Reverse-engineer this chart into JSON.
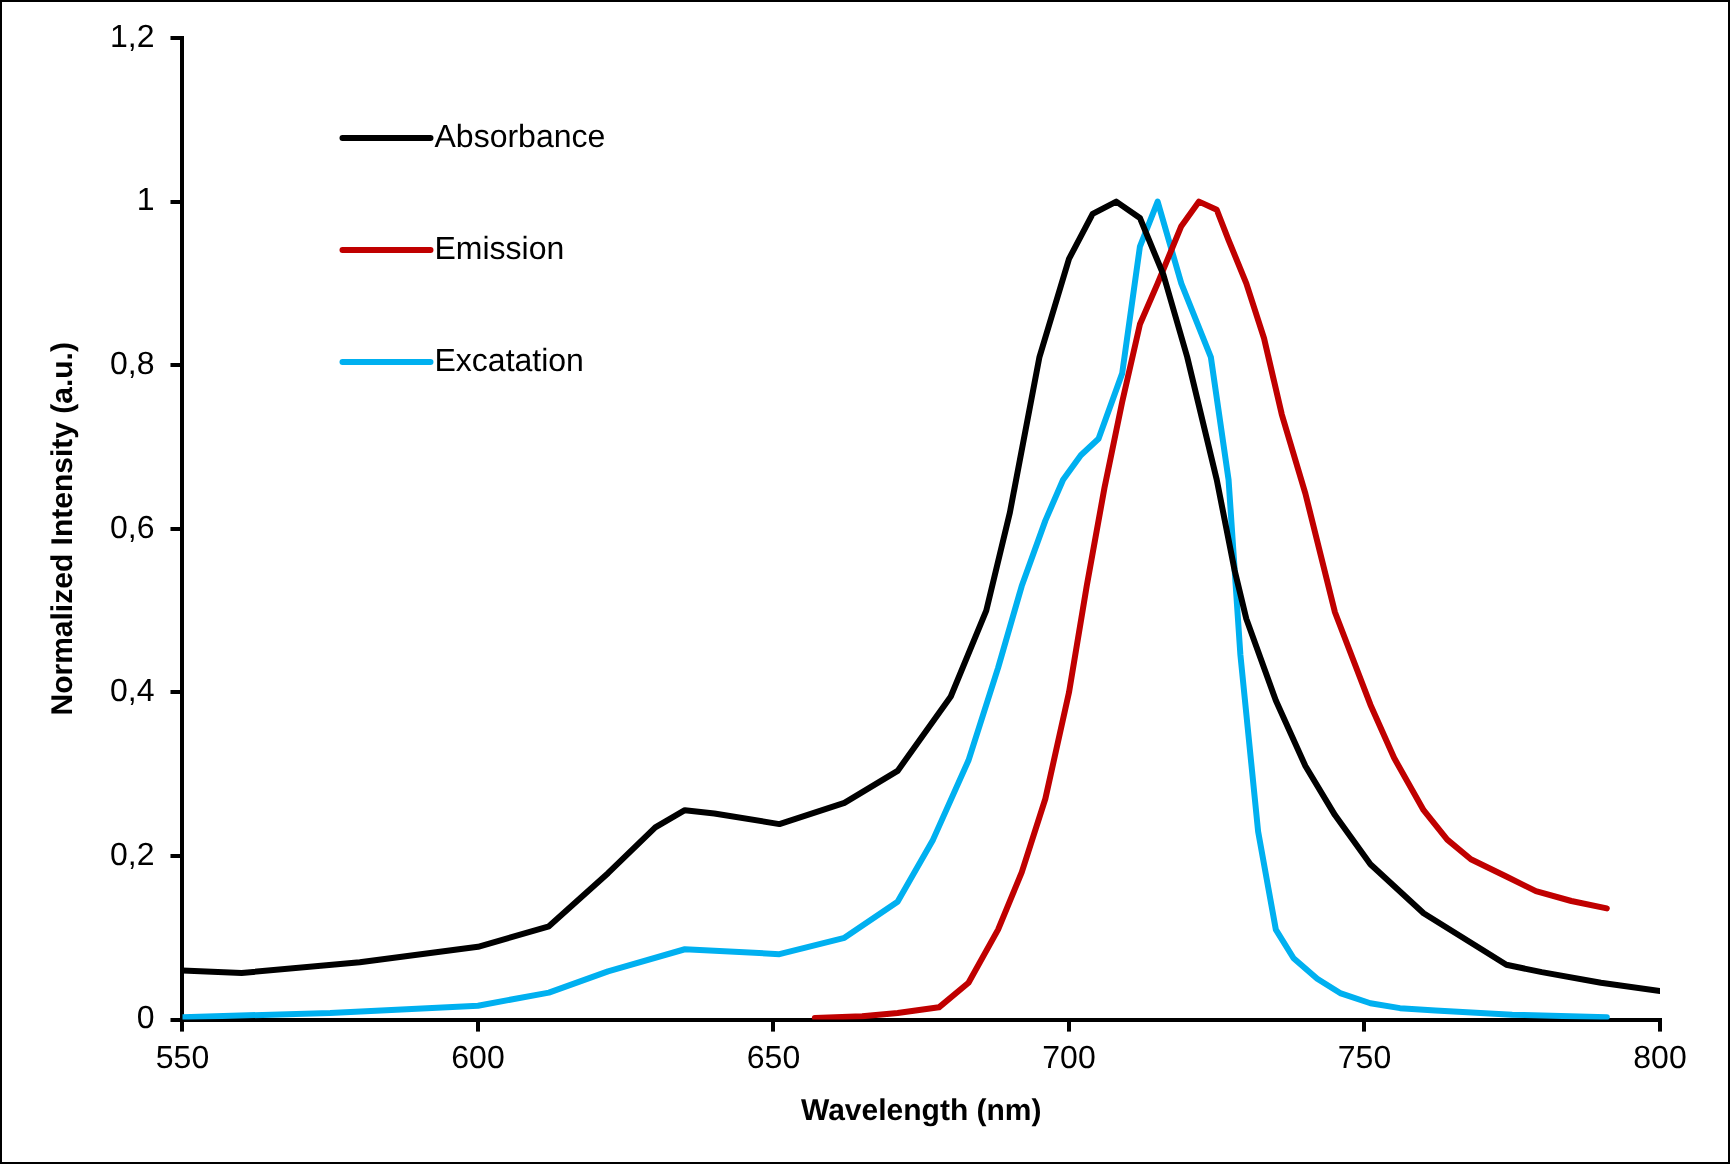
{
  "chart_data": {
    "type": "line",
    "xlabel": "Wavelength (nm)",
    "ylabel": "Normalized Intensity (a.u.)",
    "xlim": [
      550,
      800
    ],
    "xticks": [
      550,
      600,
      650,
      700,
      750,
      800
    ],
    "ylim": [
      0,
      1.2
    ],
    "yticks": [
      0,
      {
        "value": 0.2,
        "label": "0,2"
      },
      {
        "value": 0.4,
        "label": "0,4"
      },
      {
        "value": 0.6,
        "label": "0,6"
      },
      {
        "value": 0.8,
        "label": "0,8"
      },
      1,
      {
        "value": 1.2,
        "label": "1,2"
      }
    ],
    "grid": false,
    "legend": "top left",
    "marker": "none",
    "line_style": "solid",
    "series": [
      {
        "name": "Absorbance",
        "color": "#000000",
        "x": [
          550,
          560,
          580,
          600,
          612,
          622,
          630,
          635,
          640,
          651,
          662,
          671,
          680,
          686,
          690,
          695,
          700,
          704,
          708,
          712,
          716,
          720,
          725,
          728,
          730,
          735,
          740,
          745,
          751,
          760,
          770,
          774,
          780,
          790,
          800
        ],
        "values": [
          0.06,
          0.057,
          0.07,
          0.089,
          0.114,
          0.179,
          0.235,
          0.256,
          0.252,
          0.239,
          0.265,
          0.304,
          0.395,
          0.5,
          0.62,
          0.81,
          0.93,
          0.985,
          1.0,
          0.98,
          0.91,
          0.81,
          0.66,
          0.55,
          0.49,
          0.39,
          0.31,
          0.25,
          0.19,
          0.13,
          0.085,
          0.067,
          0.058,
          0.045,
          0.035
        ]
      },
      {
        "name": "Emission",
        "color": "#c00000",
        "x": [
          657,
          665,
          671,
          678,
          683,
          688,
          692,
          696,
          700,
          703,
          706,
          709,
          712,
          715,
          719,
          722,
          725,
          727,
          730,
          733,
          736,
          740,
          745,
          751,
          755,
          760,
          764,
          768,
          774,
          779,
          785,
          791
        ],
        "values": [
          0.002,
          0.004,
          0.008,
          0.015,
          0.045,
          0.11,
          0.18,
          0.27,
          0.4,
          0.53,
          0.65,
          0.755,
          0.85,
          0.9,
          0.97,
          1.0,
          0.99,
          0.953,
          0.9,
          0.833,
          0.74,
          0.643,
          0.498,
          0.385,
          0.32,
          0.256,
          0.22,
          0.196,
          0.175,
          0.157,
          0.145,
          0.136
        ]
      },
      {
        "name": "Excatation",
        "color": "#00b0f0",
        "x": [
          550,
          575,
          600,
          612,
          622,
          635,
          651,
          662,
          671,
          677,
          683,
          688,
          692,
          696,
          699,
          702,
          705,
          709,
          712,
          715,
          719,
          724,
          727,
          729,
          732,
          735,
          738,
          742,
          746,
          751,
          756,
          762,
          775,
          791
        ],
        "values": [
          0.003,
          0.008,
          0.017,
          0.033,
          0.059,
          0.086,
          0.08,
          0.1,
          0.144,
          0.22,
          0.317,
          0.43,
          0.53,
          0.61,
          0.66,
          0.69,
          0.71,
          0.79,
          0.945,
          1.0,
          0.9,
          0.81,
          0.66,
          0.446,
          0.23,
          0.11,
          0.075,
          0.05,
          0.032,
          0.02,
          0.014,
          0.011,
          0.006,
          0.003
        ]
      }
    ]
  }
}
